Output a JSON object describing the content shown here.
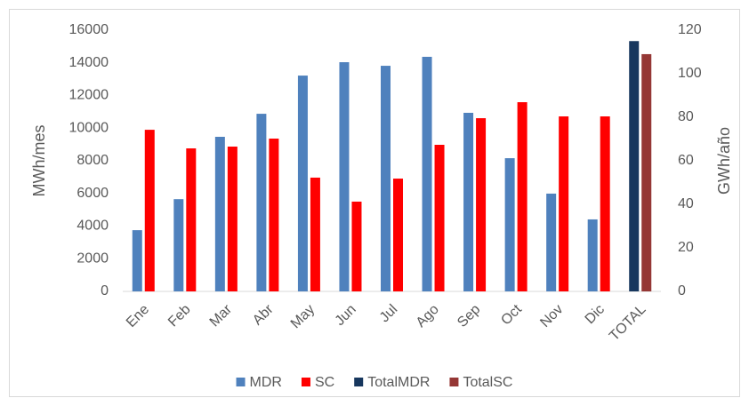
{
  "chart_data": {
    "type": "bar",
    "categories": [
      "Ene",
      "Feb",
      "Mar",
      "Abr",
      "May",
      "Jun",
      "Jul",
      "Ago",
      "Sep",
      "Oct",
      "Nov",
      "Dic",
      "TOTAL"
    ],
    "series": [
      {
        "name": "MDR",
        "color": "#4f81bd",
        "values": [
          3750,
          5650,
          9470,
          10880,
          13220,
          14040,
          13820,
          14370,
          10940,
          8160,
          5990,
          4410,
          null
        ]
      },
      {
        "name": "SC",
        "color": "#ff0000",
        "values": [
          9900,
          8760,
          8870,
          9360,
          6970,
          5500,
          6910,
          8980,
          10610,
          11590,
          10720,
          10720,
          null
        ]
      },
      {
        "name": "TotalMDR",
        "color": "#17375e",
        "axis": "y2",
        "values": [
          null,
          null,
          null,
          null,
          null,
          null,
          null,
          null,
          null,
          null,
          null,
          null,
          115
        ]
      },
      {
        "name": "TotalSC",
        "color": "#953735",
        "axis": "y2",
        "values": [
          null,
          null,
          null,
          null,
          null,
          null,
          null,
          null,
          null,
          null,
          null,
          null,
          109
        ]
      }
    ],
    "y_label": "MWh/mes",
    "y2_label": "GWh/año",
    "ylim": [
      0,
      16000
    ],
    "yticks": [
      0,
      2000,
      4000,
      6000,
      8000,
      10000,
      12000,
      14000,
      16000
    ],
    "y2lim": [
      0,
      120
    ],
    "y2ticks": [
      0,
      20,
      40,
      60,
      80,
      100,
      120
    ],
    "grid": false,
    "legend": "bottom"
  }
}
